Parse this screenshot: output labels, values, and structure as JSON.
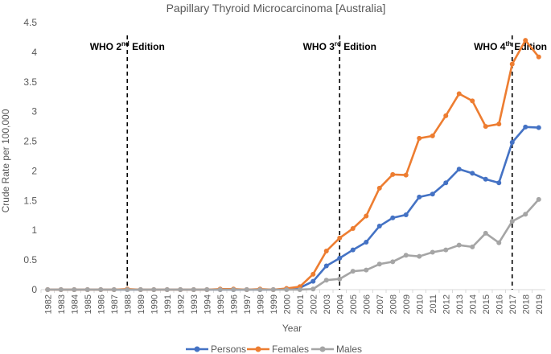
{
  "chart_data": {
    "type": "line",
    "title": "Papillary Thyroid Microcarcinoma [Australia]",
    "xlabel": "Year",
    "ylabel": "Crude Rate per 100,000",
    "ylim": [
      0,
      4.5
    ],
    "yticks": [
      "0",
      "0.5",
      "1",
      "1.5",
      "2",
      "2.5",
      "3",
      "3.5",
      "4",
      "4.5"
    ],
    "grid": false,
    "legend_position": "bottom",
    "categories": [
      "1982",
      "1983",
      "1984",
      "1985",
      "1986",
      "1987",
      "1988",
      "1989",
      "1990",
      "1991",
      "1992",
      "1993",
      "1994",
      "1995",
      "1996",
      "1997",
      "1998",
      "1999",
      "2000",
      "2001",
      "2002",
      "2003",
      "2004",
      "2005",
      "2006",
      "2007",
      "2008",
      "2009",
      "2010",
      "2011",
      "2012",
      "2013",
      "2014",
      "2015",
      "2016",
      "2017",
      "2018",
      "2019"
    ],
    "series": [
      {
        "name": "Persons",
        "color": "#4472c4",
        "values": [
          0,
          0,
          0,
          0,
          0,
          0,
          0,
          0,
          0,
          0,
          0,
          0,
          0,
          0,
          0,
          0,
          0,
          0,
          0.01,
          0.03,
          0.14,
          0.4,
          0.53,
          0.67,
          0.8,
          1.07,
          1.21,
          1.26,
          1.56,
          1.61,
          1.8,
          2.03,
          1.96,
          1.86,
          1.8,
          2.48,
          2.74,
          2.73
        ]
      },
      {
        "name": "Females",
        "color": "#ed7d31",
        "values": [
          0,
          0,
          0,
          0,
          0,
          0,
          0.01,
          0,
          0,
          0,
          0,
          0,
          0,
          0.01,
          0.01,
          0,
          0.01,
          0,
          0.02,
          0.05,
          0.26,
          0.65,
          0.87,
          1.03,
          1.24,
          1.71,
          1.94,
          1.93,
          2.55,
          2.59,
          2.93,
          3.3,
          3.18,
          2.75,
          2.79,
          3.8,
          4.2,
          3.92
        ]
      },
      {
        "name": "Males",
        "color": "#a5a5a5",
        "values": [
          0,
          0,
          0,
          0,
          0,
          0,
          0,
          0,
          0,
          0,
          0,
          0,
          0,
          0,
          0,
          0,
          0,
          0,
          0,
          0,
          0.01,
          0.16,
          0.18,
          0.31,
          0.33,
          0.43,
          0.47,
          0.58,
          0.56,
          0.63,
          0.67,
          0.75,
          0.72,
          0.95,
          0.79,
          1.15,
          1.27,
          1.52
        ]
      }
    ],
    "annotations": [
      {
        "label": "WHO 2",
        "sup": "nd",
        "suffix": " Edition",
        "year": "1988"
      },
      {
        "label": "WHO 3",
        "sup": "rd",
        "suffix": " Edition",
        "year": "2004"
      },
      {
        "label": "WHO 4",
        "sup": "th",
        "suffix": " Edition",
        "year": "2017"
      }
    ]
  }
}
